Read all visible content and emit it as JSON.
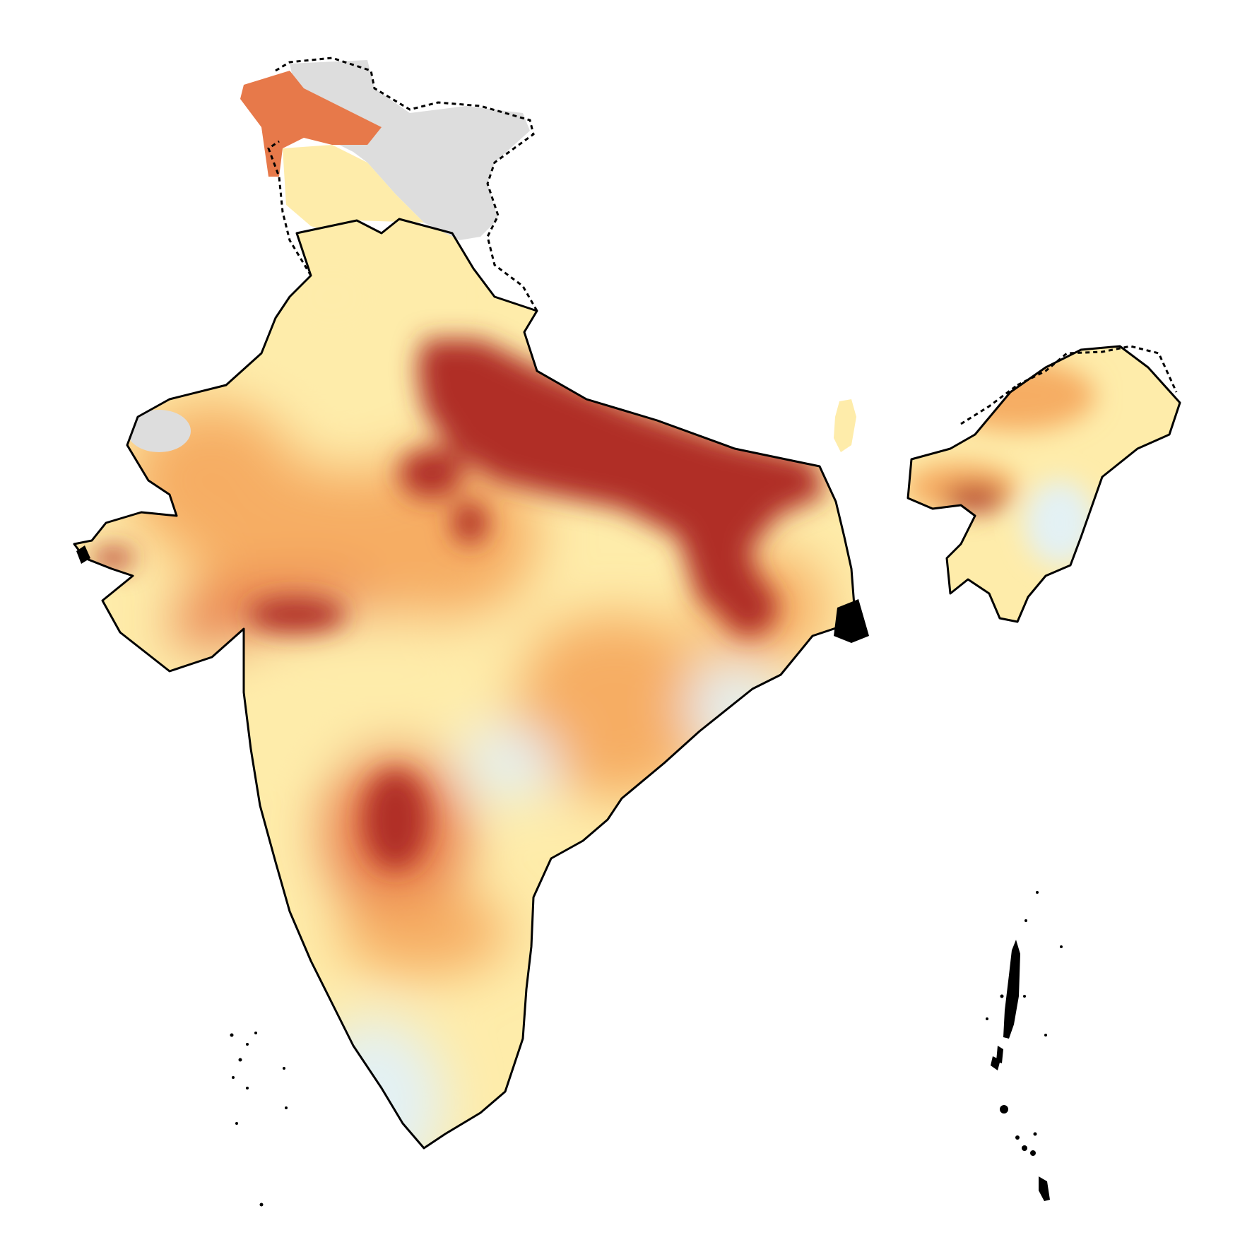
{
  "map": {
    "palette": {
      "very_high": "#b02e27",
      "high": "#e7794a",
      "medium_high": "#f6ad63",
      "medium": "#fcd27f",
      "low": "#feecaa",
      "very_low": "#e3f1f4",
      "lowest": "#b5d7ea",
      "no_data": "#dddddd",
      "boundary": "#000000"
    },
    "boundaries": {
      "national": "solid",
      "disputed": "dashed"
    }
  }
}
